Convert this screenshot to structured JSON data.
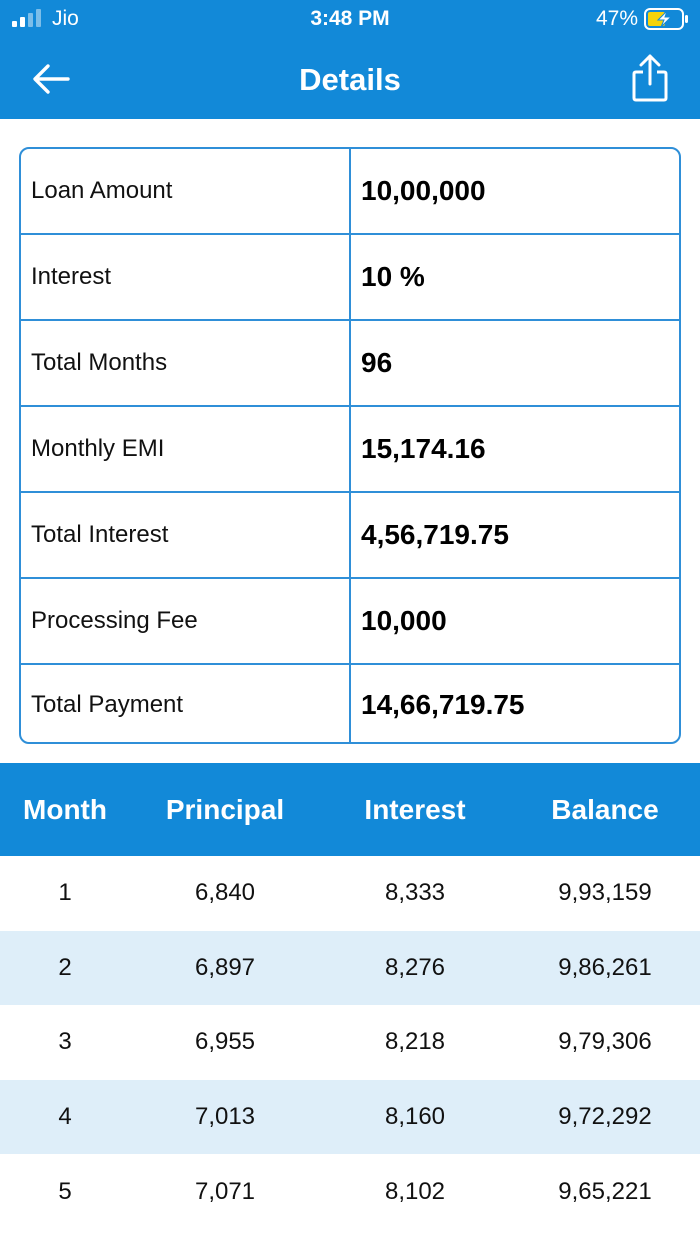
{
  "status_bar": {
    "carrier": "Jio",
    "time": "3:48 PM",
    "battery": "47%"
  },
  "nav": {
    "title": "Details"
  },
  "summary": [
    {
      "label": "Loan Amount",
      "value": "10,00,000"
    },
    {
      "label": "Interest",
      "value": "10 %"
    },
    {
      "label": "Total Months",
      "value": "96"
    },
    {
      "label": "Monthly EMI",
      "value": "15,174.16"
    },
    {
      "label": "Total Interest",
      "value": "4,56,719.75"
    },
    {
      "label": "Processing Fee",
      "value": "10,000"
    },
    {
      "label": "Total Payment",
      "value": "14,66,719.75"
    }
  ],
  "schedule": {
    "headers": [
      "Month",
      "Principal",
      "Interest",
      "Balance"
    ],
    "rows": [
      [
        "1",
        "6,840",
        "8,333",
        "9,93,159"
      ],
      [
        "2",
        "6,897",
        "8,276",
        "9,86,261"
      ],
      [
        "3",
        "6,955",
        "8,218",
        "9,79,306"
      ],
      [
        "4",
        "7,013",
        "8,160",
        "9,72,292"
      ],
      [
        "5",
        "7,071",
        "8,102",
        "9,65,221"
      ]
    ]
  },
  "colors": {
    "primary": "#1289d8",
    "border": "#2f8fd8",
    "row_alt": "#deeef9",
    "battery_charge": "#f5d30a"
  }
}
